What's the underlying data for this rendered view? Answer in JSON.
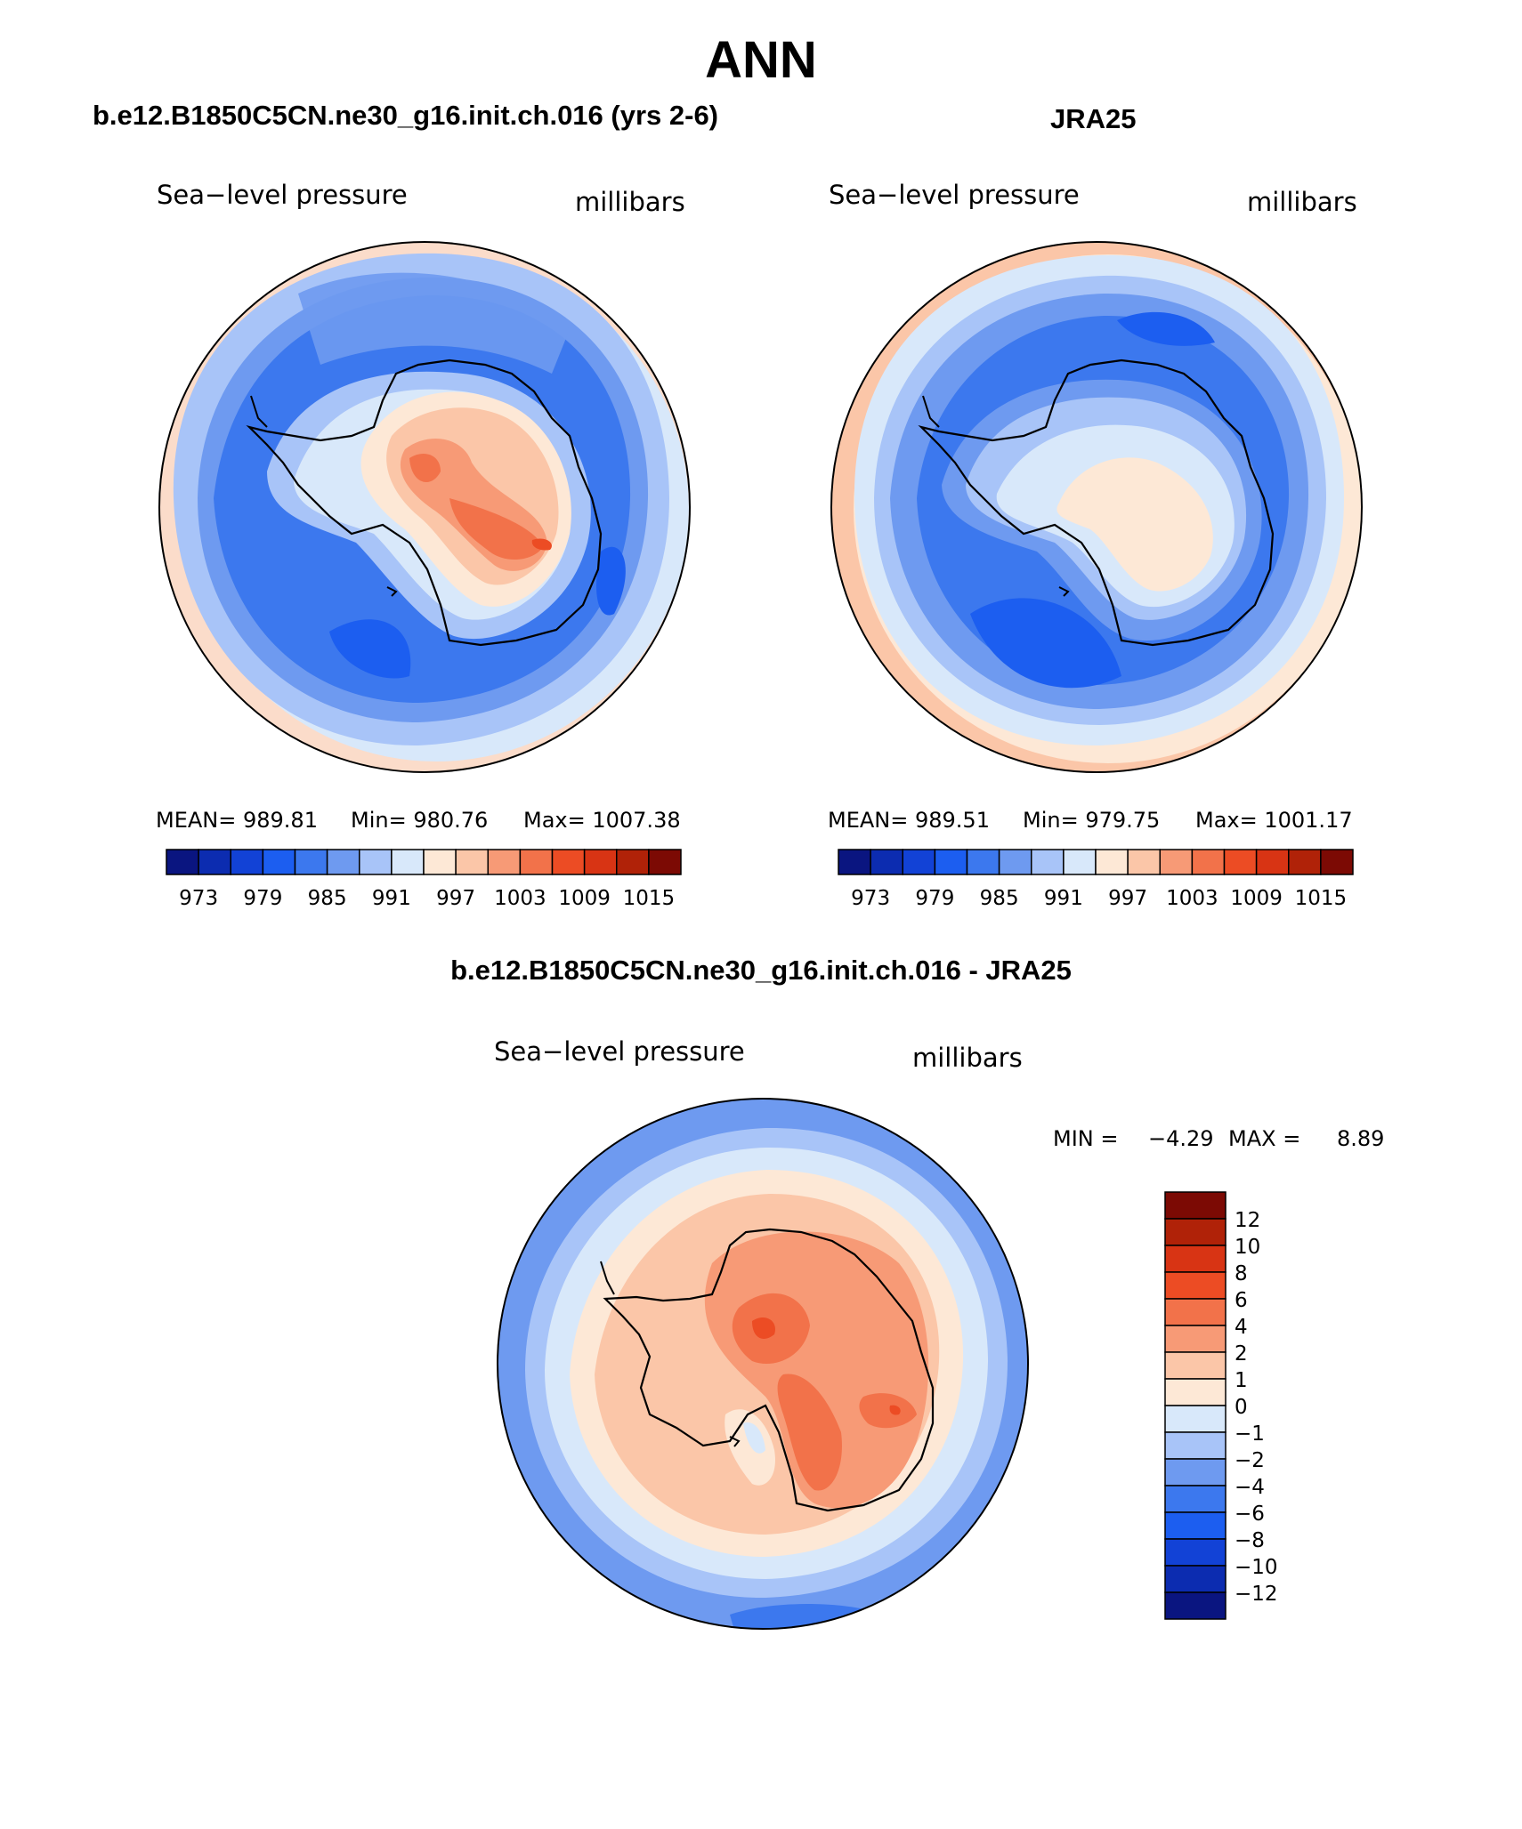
{
  "title": "ANN",
  "panel_left": {
    "title": "b.e12.B1850C5CN.ne30_g16.init.ch.016 (yrs 2-6)",
    "variable": "Sea−level pressure",
    "units": "millibars",
    "stats": {
      "mean": "MEAN= 989.81",
      "min": "Min= 980.76",
      "max": "Max= 1007.38"
    }
  },
  "panel_right": {
    "title": "JRA25",
    "variable": "Sea−level pressure",
    "units": "millibars",
    "stats": {
      "mean": "MEAN= 989.51",
      "min": "Min= 979.75",
      "max": "Max= 1001.17"
    }
  },
  "panel_diff": {
    "title": "b.e12.B1850C5CN.ne30_g16.init.ch.016 - JRA25",
    "variable": "Sea−level pressure",
    "units": "millibars",
    "min_label": "MIN =",
    "min_value": "−4.29",
    "max_label": "MAX =",
    "max_value": "8.89"
  },
  "colorbar_main": {
    "labels": [
      "973",
      "979",
      "985",
      "991",
      "997",
      "1003",
      "1009",
      "1015"
    ],
    "colors": [
      "#0a1580",
      "#0c2cb0",
      "#1242d6",
      "#1c5ef0",
      "#3c78ee",
      "#6e9af0",
      "#a8c4f8",
      "#d8e8fa",
      "#fde8d6",
      "#fbc6a8",
      "#f79a76",
      "#f2724a",
      "#ec4c24",
      "#d83414",
      "#b02208",
      "#7c0a04"
    ]
  },
  "colorbar_diff": {
    "labels": [
      "12",
      "10",
      "8",
      "6",
      "4",
      "2",
      "1",
      "0",
      "−1",
      "−2",
      "−4",
      "−6",
      "−8",
      "−10",
      "−12"
    ],
    "colors": [
      "#7c0a04",
      "#b02208",
      "#d83414",
      "#ec4c24",
      "#f2724a",
      "#f79a76",
      "#fbc6a8",
      "#fde8d6",
      "#d8e8fa",
      "#a8c4f8",
      "#6e9af0",
      "#3c78ee",
      "#1c5ef0",
      "#1242d6",
      "#0c2cb0",
      "#0a1580"
    ]
  }
}
